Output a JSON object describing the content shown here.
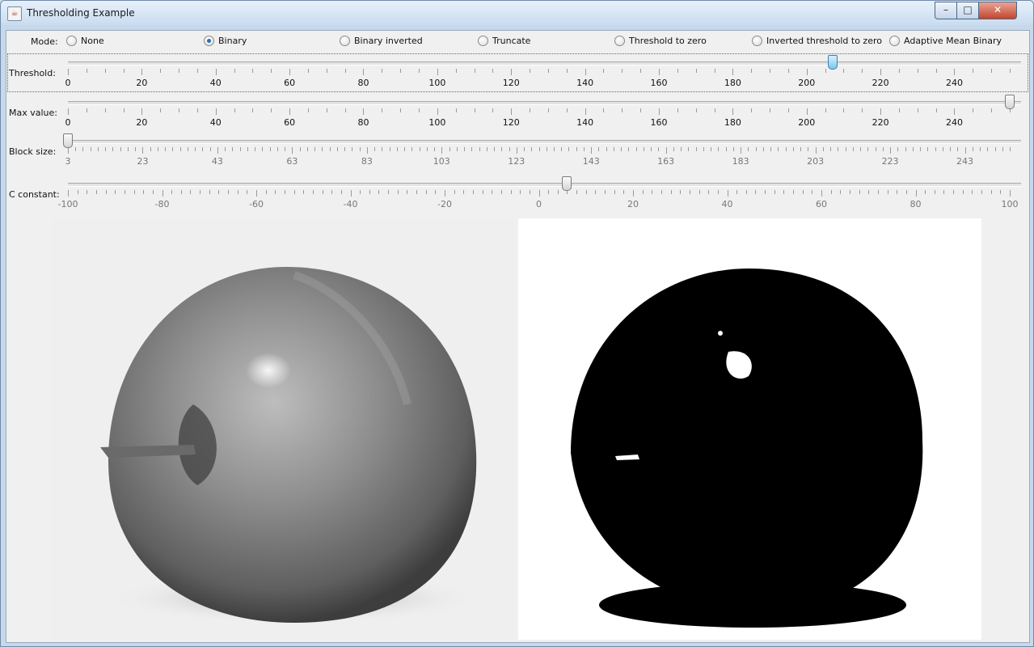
{
  "window": {
    "title": "Thresholding Example",
    "icon": "java-cup-icon",
    "controls": {
      "minimize": "minimize-icon",
      "maximize": "maximize-icon",
      "close": "close-icon"
    }
  },
  "mode": {
    "label": "Mode:",
    "options": [
      {
        "label": "None",
        "selected": false
      },
      {
        "label": "Binary",
        "selected": true
      },
      {
        "label": "Binary inverted",
        "selected": false
      },
      {
        "label": "Truncate",
        "selected": false
      },
      {
        "label": "Threshold to zero",
        "selected": false
      },
      {
        "label": "Inverted threshold to zero",
        "selected": false
      },
      {
        "label": "Adaptive Mean Binary",
        "selected": false
      }
    ]
  },
  "sliders": [
    {
      "label": "Threshold:",
      "min": 0,
      "max": 255,
      "value": 207,
      "major": 20,
      "minor": 5,
      "enabled": true,
      "focused": true,
      "ticks": [
        "0",
        "20",
        "40",
        "60",
        "80",
        "100",
        "120",
        "140",
        "160",
        "180",
        "200",
        "220",
        "240"
      ]
    },
    {
      "label": "Max value:",
      "min": 0,
      "max": 255,
      "value": 255,
      "major": 20,
      "minor": 5,
      "enabled": true,
      "focused": false,
      "ticks": [
        "0",
        "20",
        "40",
        "60",
        "80",
        "100",
        "120",
        "140",
        "160",
        "180",
        "200",
        "220",
        "240"
      ]
    },
    {
      "label": "Block size:",
      "min": 3,
      "max": 255,
      "value": 3,
      "major": 20,
      "minor": 2,
      "enabled": false,
      "focused": false,
      "ticks": [
        "3",
        "23",
        "43",
        "63",
        "83",
        "103",
        "123",
        "143",
        "163",
        "183",
        "203",
        "223",
        "243"
      ]
    },
    {
      "label": "C constant:",
      "min": -100,
      "max": 100,
      "value": 6,
      "major": 20,
      "minor": 2,
      "enabled": false,
      "focused": false,
      "ticks": [
        "-100",
        "-80",
        "-60",
        "-40",
        "-20",
        "0",
        "20",
        "40",
        "60",
        "80",
        "100"
      ]
    }
  ],
  "images": {
    "source": {
      "name": "grayscale-apple-image"
    },
    "result": {
      "name": "thresholded-apple-image"
    }
  }
}
